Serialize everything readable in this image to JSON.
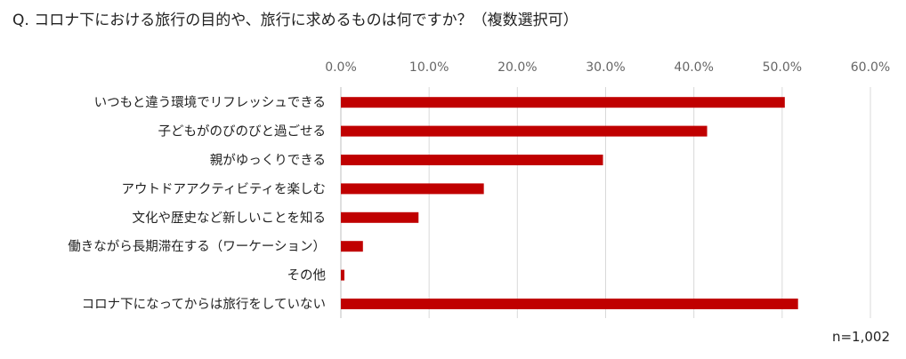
{
  "title": "Q. コロナ下における旅行の目的や、旅行に求めるものは何ですか？（複数選択可）",
  "note": "n=1,002",
  "colors": {
    "bar": "#c00000",
    "grid": "#d9d9d9",
    "tick_text": "#666666"
  },
  "chart_data": {
    "type": "bar",
    "orientation": "horizontal",
    "title": "Q. コロナ下における旅行の目的や、旅行に求めるものは何ですか？（複数選択可）",
    "categories": [
      "いつもと違う環境でリフレッシュできる",
      "子どもがのびのびと過ごせる",
      "親がゆっくりできる",
      "アウトドアアクティビティを楽しむ",
      "文化や歴史など新しいことを知る",
      "働きながら長期滞在する（ワーケーション）",
      "その他",
      "コロナ下になってからは旅行をしていない"
    ],
    "values": [
      50.3,
      41.5,
      29.7,
      16.2,
      8.8,
      2.5,
      0.4,
      51.8
    ],
    "xlim": [
      0,
      60
    ],
    "xticks": [
      0,
      10,
      20,
      30,
      40,
      50,
      60
    ],
    "xtick_labels": [
      "0.0%",
      "10.0%",
      "20.0%",
      "30.0%",
      "40.0%",
      "50.0%",
      "60.0%"
    ],
    "grid": true,
    "axis_position": "top"
  }
}
